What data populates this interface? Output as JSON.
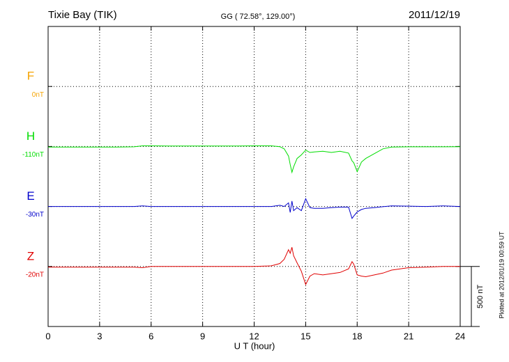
{
  "chart_data": {
    "type": "line",
    "title": "Tixie Bay (TIK)",
    "subtitle": "GG ( 72.58°, 129.00°)",
    "date": "2011/12/19",
    "xlabel": "U T (hour)",
    "footnote": "Plotted at 2012/01/19 00:59 UT",
    "x": [
      0,
      1,
      2,
      3,
      4,
      5,
      5.5,
      6,
      7,
      8,
      9,
      10,
      11,
      12,
      13,
      13.5,
      13.75,
      14,
      14.1,
      14.2,
      14.3,
      14.5,
      14.75,
      15,
      15.25,
      15.5,
      16,
      16.5,
      17,
      17.5,
      17.7,
      17.8,
      18,
      18.25,
      18.5,
      19,
      19.5,
      20,
      21,
      22,
      23,
      24
    ],
    "xlim": [
      0,
      24
    ],
    "xticks": [
      0,
      3,
      6,
      9,
      12,
      15,
      18,
      21,
      24
    ],
    "ylim": [
      0,
      2500
    ],
    "yticks": [
      500,
      1000,
      1500,
      2000
    ],
    "grid": true,
    "scale_bar": {
      "value": 500,
      "label": "500 nT"
    },
    "series": [
      {
        "name": "F",
        "baseline_label": "0nT",
        "color": "#f5a300",
        "values": [
          null,
          null,
          null,
          null,
          null,
          null,
          null,
          null,
          null,
          null,
          null,
          null,
          null,
          null,
          null,
          null,
          null,
          null,
          null,
          null,
          null,
          null,
          null,
          null,
          null,
          null,
          null,
          null,
          null,
          null,
          null,
          null,
          null,
          null,
          null,
          null,
          null,
          null,
          null,
          null,
          null,
          null
        ]
      },
      {
        "name": "H",
        "baseline_label": "-110nT",
        "color": "#00dd00",
        "values": [
          1495,
          1495,
          1495,
          1495,
          1495,
          1497,
          1505,
          1505,
          1504,
          1504,
          1504,
          1504,
          1504,
          1505,
          1505,
          1498,
          1480,
          1420,
          1350,
          1285,
          1330,
          1400,
          1430,
          1470,
          1450,
          1455,
          1460,
          1450,
          1460,
          1445,
          1380,
          1365,
          1290,
          1370,
          1400,
          1440,
          1480,
          1495,
          1497,
          1497,
          1497,
          1498
        ]
      },
      {
        "name": "E",
        "baseline_label": "-30nT",
        "color": "#0000cc",
        "values": [
          1000,
          1000,
          1000,
          1000,
          1000,
          1000,
          1005,
          1000,
          1000,
          1000,
          1000,
          1000,
          1000,
          1000,
          1000,
          1010,
          1000,
          1030,
          950,
          1045,
          965,
          990,
          965,
          1065,
          990,
          985,
          985,
          990,
          995,
          995,
          900,
          920,
          955,
          975,
          985,
          990,
          998,
          1005,
          1003,
          1000,
          1005,
          1000
        ]
      },
      {
        "name": "Z",
        "baseline_label": "-20nT",
        "color": "#e00000",
        "values": [
          495,
          495,
          495,
          495,
          495,
          495,
          490,
          500,
          500,
          500,
          500,
          500,
          500,
          500,
          505,
          525,
          560,
          640,
          610,
          660,
          590,
          530,
          460,
          350,
          420,
          440,
          430,
          440,
          450,
          480,
          540,
          520,
          430,
          420,
          415,
          430,
          445,
          470,
          490,
          495,
          500,
          500
        ]
      }
    ]
  }
}
